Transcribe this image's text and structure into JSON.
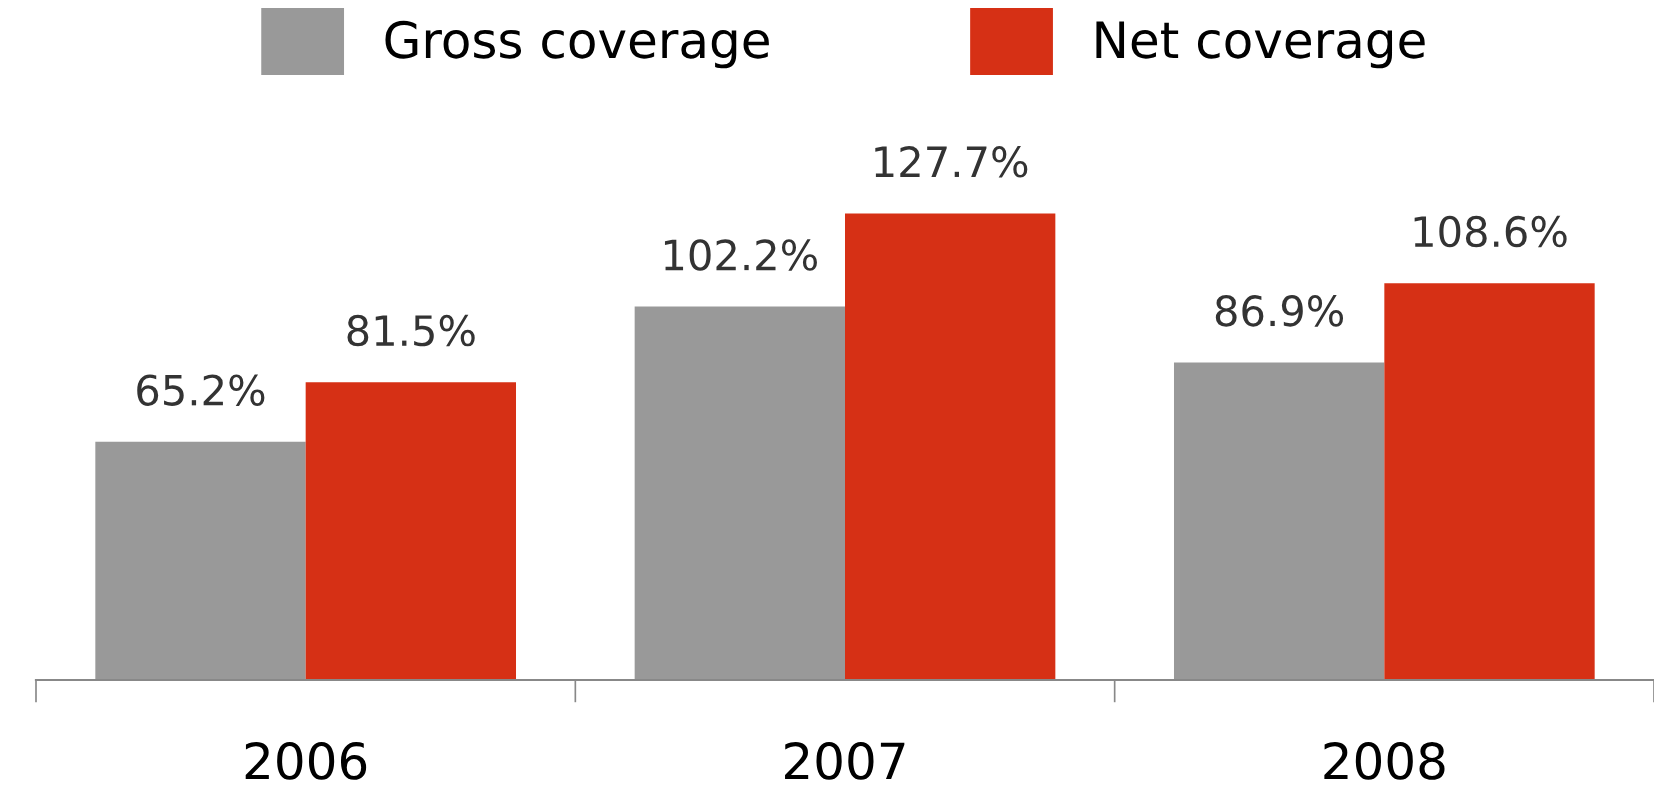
{
  "chart_data": {
    "type": "bar",
    "categories": [
      "2006",
      "2007",
      "2008"
    ],
    "series": [
      {
        "name": "Gross coverage",
        "color": "#999999",
        "values": [
          65.2,
          102.2,
          86.9
        ],
        "value_labels": [
          "65.2%",
          "102.2%",
          "86.9%"
        ]
      },
      {
        "name": "Net coverage",
        "color": "#d63015",
        "values": [
          81.5,
          127.7,
          108.6
        ],
        "value_labels": [
          "81.5%",
          "127.7%",
          "108.6%"
        ]
      }
    ],
    "legend": "top",
    "grid": false
  }
}
